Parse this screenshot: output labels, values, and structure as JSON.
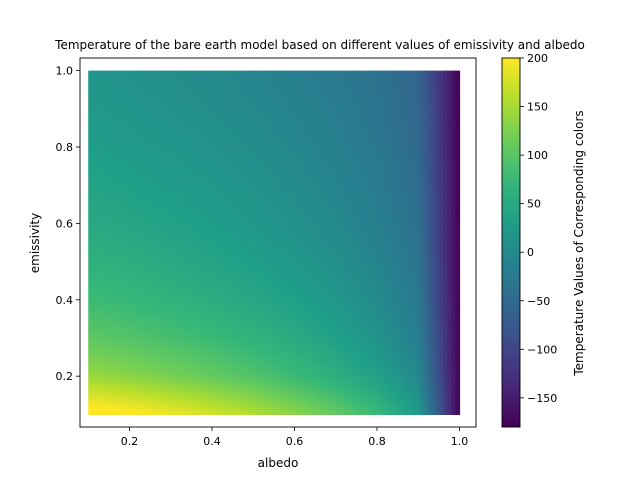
{
  "chart_data": {
    "type": "heatmap",
    "title": "Temperature of the bare earth model based on different values of emissivity and albedo",
    "xlabel": "albedo",
    "ylabel": "emissivity",
    "colorbar_label": "Temperature Values of Corresponding colors",
    "xlim": [
      0.08,
      1.04
    ],
    "ylim": [
      0.067,
      1.033
    ],
    "x_ticks": [
      0.2,
      0.4,
      0.6,
      0.8,
      1.0
    ],
    "x_tick_labels": [
      "0.2",
      "0.4",
      "0.6",
      "0.8",
      "1.0"
    ],
    "y_ticks": [
      0.2,
      0.4,
      0.6,
      0.8,
      1.0
    ],
    "y_tick_labels": [
      "0.2",
      "0.4",
      "0.6",
      "0.8",
      "1.0"
    ],
    "data_range": {
      "albedo": [
        0.1,
        1.0
      ],
      "emissivity": [
        0.1,
        1.0
      ]
    },
    "colorbar_range": [
      -180,
      200
    ],
    "colorbar_ticks": [
      200,
      150,
      100,
      50,
      0,
      -50,
      -100,
      -150
    ],
    "colorbar_tick_labels": [
      "200",
      "150",
      "100",
      "50",
      "0",
      "−50",
      "−100",
      "−150"
    ],
    "colormap": "viridis",
    "x_grid": [
      0.1,
      0.2,
      0.3,
      0.4,
      0.5,
      0.6,
      0.7,
      0.8,
      0.9,
      1.0
    ],
    "y_grid": [
      1.0,
      0.9,
      0.8,
      0.7,
      0.6,
      0.5,
      0.4,
      0.3,
      0.2,
      0.1
    ],
    "values": [
      [
        17,
        12,
        6,
        0,
        -7,
        -15,
        -25,
        -38,
        -57,
        -180
      ],
      [
        23,
        18,
        12,
        6,
        -2,
        -10,
        -20,
        -33,
        -53,
        -180
      ],
      [
        31,
        25,
        19,
        13,
        5,
        -4,
        -14,
        -28,
        -49,
        -180
      ],
      [
        40,
        34,
        27,
        21,
        13,
        3,
        -8,
        -22,
        -44,
        -180
      ],
      [
        50,
        44,
        37,
        30,
        21,
        11,
        0,
        -16,
        -39,
        -180
      ],
      [
        63,
        57,
        49,
        41,
        32,
        21,
        9,
        -8,
        -33,
        -180
      ],
      [
        80,
        73,
        65,
        56,
        46,
        34,
        20,
        2,
        -25,
        -180
      ],
      [
        104,
        96,
        87,
        77,
        65,
        51,
        35,
        14,
        -16,
        -180
      ],
      [
        141,
        132,
        121,
        109,
        95,
        78,
        59,
        34,
        -2,
        -180
      ],
      [
        218,
        206,
        192,
        176,
        157,
        135,
        109,
        76,
        27,
        -180
      ]
    ]
  }
}
